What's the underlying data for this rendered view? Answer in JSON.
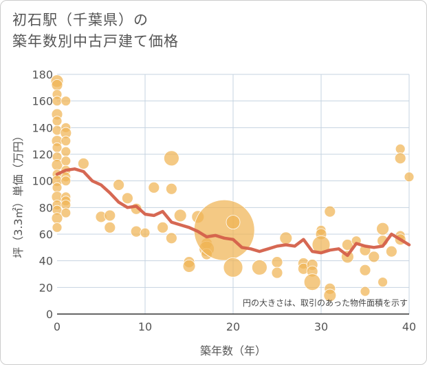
{
  "chart_data": {
    "type": "scatter",
    "title_lines": [
      "初石駅（千葉県）の",
      "築年数別中古戸建て価格"
    ],
    "xlabel": "築年数（年）",
    "ylabel": "坪（3.3㎡）単価（万円）",
    "xlim": [
      0,
      40
    ],
    "ylim": [
      0,
      180
    ],
    "x_ticks": [
      0,
      10,
      20,
      30,
      40
    ],
    "y_ticks": [
      0,
      20,
      40,
      60,
      80,
      100,
      120,
      140,
      160,
      180
    ],
    "annotation": "円の大きさは、取引のあった物件面積を示す",
    "colors": {
      "bubble": "#f0b454",
      "line": "#d4604a",
      "grid": "#c5d3e0",
      "axis": "#333333"
    },
    "series": [
      {
        "name": "transactions",
        "type": "bubble",
        "points": [
          {
            "x": 0,
            "y": 175,
            "s": 9
          },
          {
            "x": 0,
            "y": 172,
            "s": 8
          },
          {
            "x": 0,
            "y": 165,
            "s": 7
          },
          {
            "x": 0,
            "y": 160,
            "s": 7
          },
          {
            "x": 0,
            "y": 150,
            "s": 8
          },
          {
            "x": 0,
            "y": 145,
            "s": 7
          },
          {
            "x": 0,
            "y": 138,
            "s": 7
          },
          {
            "x": 0,
            "y": 130,
            "s": 8
          },
          {
            "x": 0,
            "y": 125,
            "s": 7
          },
          {
            "x": 0,
            "y": 118,
            "s": 7
          },
          {
            "x": 0,
            "y": 112,
            "s": 8
          },
          {
            "x": 0,
            "y": 105,
            "s": 7
          },
          {
            "x": 0,
            "y": 100,
            "s": 8
          },
          {
            "x": 0,
            "y": 95,
            "s": 7
          },
          {
            "x": 0,
            "y": 88,
            "s": 8
          },
          {
            "x": 0,
            "y": 82,
            "s": 7
          },
          {
            "x": 0,
            "y": 78,
            "s": 7
          },
          {
            "x": 0,
            "y": 72,
            "s": 8
          },
          {
            "x": 0,
            "y": 65,
            "s": 7
          },
          {
            "x": 1,
            "y": 160,
            "s": 7
          },
          {
            "x": 1,
            "y": 140,
            "s": 7
          },
          {
            "x": 1,
            "y": 136,
            "s": 8
          },
          {
            "x": 1,
            "y": 130,
            "s": 7
          },
          {
            "x": 1,
            "y": 122,
            "s": 7
          },
          {
            "x": 1,
            "y": 115,
            "s": 7
          },
          {
            "x": 1,
            "y": 108,
            "s": 7
          },
          {
            "x": 1,
            "y": 103,
            "s": 7
          },
          {
            "x": 1,
            "y": 100,
            "s": 7
          },
          {
            "x": 1,
            "y": 88,
            "s": 7
          },
          {
            "x": 1,
            "y": 85,
            "s": 7
          },
          {
            "x": 1,
            "y": 82,
            "s": 7
          },
          {
            "x": 1,
            "y": 76,
            "s": 7
          },
          {
            "x": 3,
            "y": 113,
            "s": 8
          },
          {
            "x": 5,
            "y": 73,
            "s": 8
          },
          {
            "x": 6,
            "y": 74,
            "s": 8
          },
          {
            "x": 6,
            "y": 65,
            "s": 8
          },
          {
            "x": 7,
            "y": 97,
            "s": 8
          },
          {
            "x": 8,
            "y": 87,
            "s": 8
          },
          {
            "x": 9,
            "y": 79,
            "s": 8
          },
          {
            "x": 9,
            "y": 62,
            "s": 8
          },
          {
            "x": 10,
            "y": 61,
            "s": 7
          },
          {
            "x": 11,
            "y": 95,
            "s": 8
          },
          {
            "x": 12,
            "y": 65,
            "s": 8
          },
          {
            "x": 13,
            "y": 117,
            "s": 11
          },
          {
            "x": 13,
            "y": 94,
            "s": 8
          },
          {
            "x": 13,
            "y": 57,
            "s": 8
          },
          {
            "x": 14,
            "y": 74,
            "s": 9
          },
          {
            "x": 15,
            "y": 39,
            "s": 8
          },
          {
            "x": 15,
            "y": 36,
            "s": 9
          },
          {
            "x": 16,
            "y": 73,
            "s": 9
          },
          {
            "x": 17,
            "y": 53,
            "s": 8
          },
          {
            "x": 17,
            "y": 49,
            "s": 11
          },
          {
            "x": 17,
            "y": 45,
            "s": 8
          },
          {
            "x": 19,
            "y": 63,
            "s": 44
          },
          {
            "x": 20,
            "y": 69,
            "s": 10
          },
          {
            "x": 20,
            "y": 35,
            "s": 14
          },
          {
            "x": 23,
            "y": 35,
            "s": 11
          },
          {
            "x": 25,
            "y": 39,
            "s": 8
          },
          {
            "x": 25,
            "y": 31,
            "s": 8
          },
          {
            "x": 26,
            "y": 57,
            "s": 9
          },
          {
            "x": 28,
            "y": 38,
            "s": 8
          },
          {
            "x": 28,
            "y": 34,
            "s": 8
          },
          {
            "x": 29,
            "y": 37,
            "s": 8
          },
          {
            "x": 29,
            "y": 32,
            "s": 8
          },
          {
            "x": 29,
            "y": 24,
            "s": 12
          },
          {
            "x": 30,
            "y": 63,
            "s": 7
          },
          {
            "x": 30,
            "y": 60,
            "s": 8
          },
          {
            "x": 30,
            "y": 52,
            "s": 13
          },
          {
            "x": 31,
            "y": 77,
            "s": 8
          },
          {
            "x": 31,
            "y": 19,
            "s": 8
          },
          {
            "x": 31,
            "y": 14,
            "s": 9
          },
          {
            "x": 33,
            "y": 52,
            "s": 8
          },
          {
            "x": 33,
            "y": 43,
            "s": 9
          },
          {
            "x": 34,
            "y": 55,
            "s": 7
          },
          {
            "x": 35,
            "y": 48,
            "s": 8
          },
          {
            "x": 35,
            "y": 33,
            "s": 8
          },
          {
            "x": 35,
            "y": 17,
            "s": 7
          },
          {
            "x": 36,
            "y": 43,
            "s": 8
          },
          {
            "x": 37,
            "y": 64,
            "s": 9
          },
          {
            "x": 37,
            "y": 55,
            "s": 8
          },
          {
            "x": 37,
            "y": 24,
            "s": 7
          },
          {
            "x": 38,
            "y": 47,
            "s": 8
          },
          {
            "x": 39,
            "y": 124,
            "s": 7
          },
          {
            "x": 39,
            "y": 117,
            "s": 8
          },
          {
            "x": 39,
            "y": 59,
            "s": 7
          },
          {
            "x": 39,
            "y": 56,
            "s": 8
          },
          {
            "x": 40,
            "y": 103,
            "s": 7
          }
        ]
      },
      {
        "name": "average",
        "type": "line",
        "x": [
          0,
          1,
          2,
          3,
          4,
          5,
          6,
          7,
          8,
          9,
          10,
          11,
          12,
          13,
          14,
          15,
          16,
          17,
          18,
          19,
          20,
          21,
          22,
          23,
          24,
          25,
          26,
          27,
          28,
          29,
          30,
          31,
          32,
          33,
          34,
          35,
          36,
          37,
          38,
          39,
          40
        ],
        "y": [
          105,
          108,
          109,
          107,
          100,
          97,
          91,
          84,
          80,
          81,
          75,
          74,
          77,
          69,
          67,
          65,
          62,
          58,
          59,
          57,
          56,
          50,
          49,
          47,
          49,
          51,
          52,
          51,
          56,
          47,
          46,
          48,
          49,
          44,
          53,
          51,
          50,
          51,
          60,
          56,
          52
        ]
      }
    ]
  }
}
